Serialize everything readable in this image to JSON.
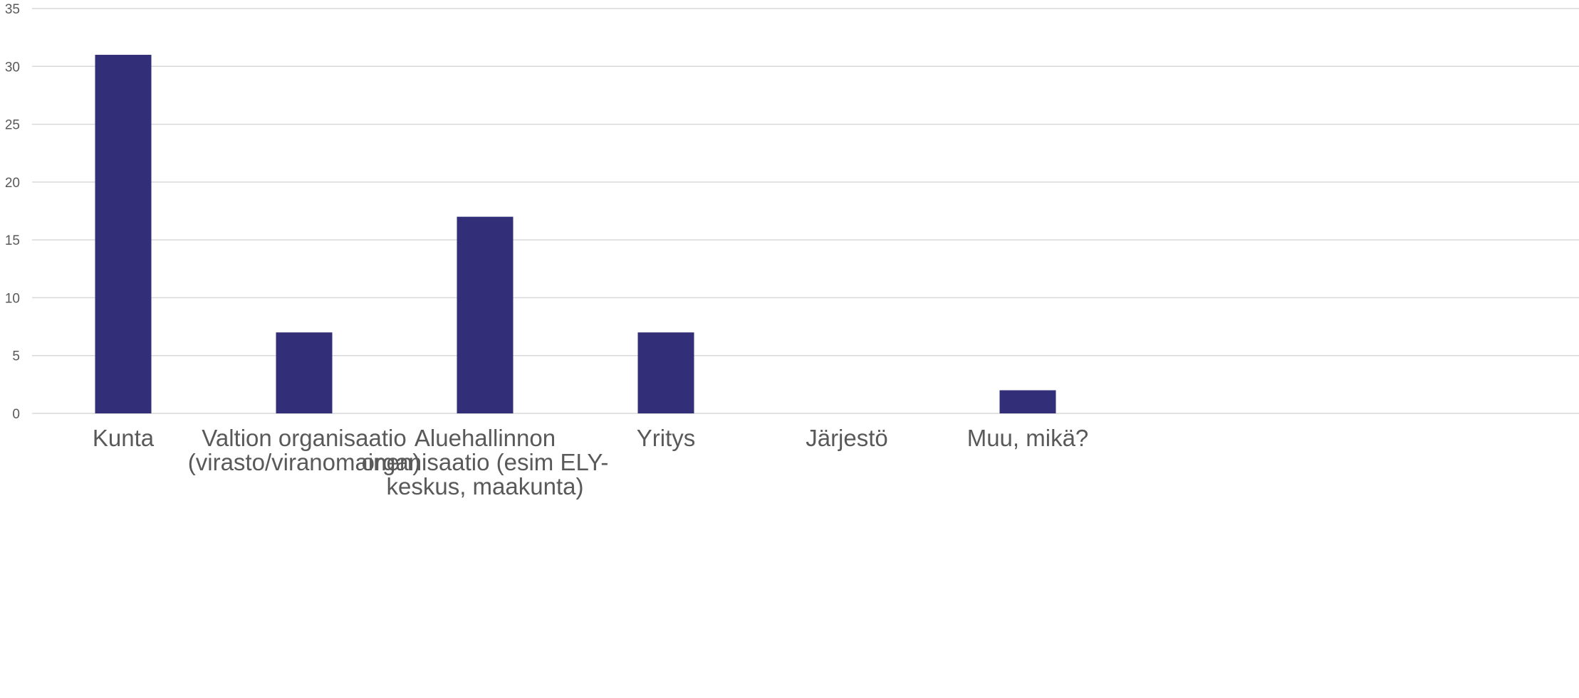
{
  "chart_data": {
    "type": "bar",
    "title": "",
    "xlabel": "",
    "ylabel": "",
    "categories": [
      "Kunta",
      "Valtion organisaatio (virasto/viranomainen)",
      "Aluehallinnon organisaatio (esim ELY-keskus, maakunta)",
      "Yritys",
      "Järjestö",
      "Muu, mikä?"
    ],
    "category_label_lines": [
      [
        "Kunta"
      ],
      [
        "Valtion organisaatio",
        "(virasto/viranomainen)"
      ],
      [
        "Aluehallinnon",
        "organisaatio (esim ELY-",
        "keskus, maakunta)"
      ],
      [
        "Yritys"
      ],
      [
        "Järjestö"
      ],
      [
        "Muu, mikä?"
      ]
    ],
    "values": [
      31,
      7,
      17,
      7,
      0,
      2
    ],
    "ylim": [
      0,
      35
    ],
    "yticks": [
      0,
      5,
      10,
      15,
      20,
      25,
      30,
      35
    ],
    "grid": true,
    "legend": "none",
    "colors": {
      "bar": "#322e78",
      "grid": "#d9d9d9",
      "text": "#595959"
    }
  }
}
